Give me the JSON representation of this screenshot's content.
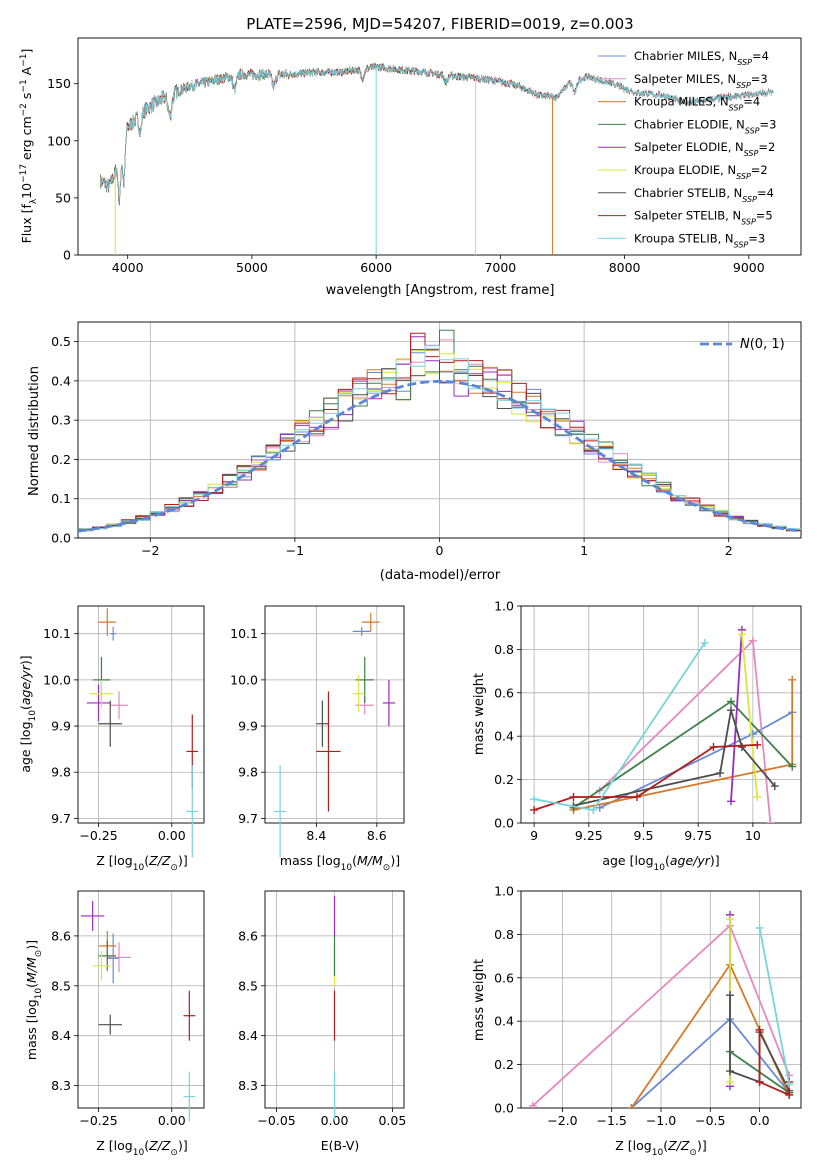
{
  "figure": {
    "title": "PLATE=2596, MJD=54207, FIBERID=0019, z=0.003"
  },
  "colors": {
    "Chabrier MILES": "#6a8ad8",
    "Salpeter MILES": "#e58ac0",
    "Kroupa MILES": "#d77a25",
    "Chabrier ELODIE": "#3f7f4a",
    "Salpeter ELODIE": "#9b2bc1",
    "Kroupa ELODIE": "#d9e63d",
    "Chabrier STELIB": "#4d4d4d",
    "Salpeter STELIB": "#b51d1d",
    "Kroupa STELIB": "#78d4dc",
    "normal_curve": "#5a88d8",
    "grid": "#b0b0b0"
  },
  "chart_data": [
    {
      "type": "line",
      "id": "spectrum",
      "xlabel": "wavelength [Angstrom, rest frame]",
      "ylabel": "Flux [f_λ 10^-17 erg cm^-2 s^-1 A^-1]",
      "xlim": [
        3600,
        9420
      ],
      "ylim": [
        0,
        190
      ],
      "xticks": [
        4000,
        5000,
        6000,
        7000,
        8000,
        9000
      ],
      "yticks": [
        0,
        50,
        100,
        150
      ],
      "grid": false,
      "legend_position": "top-right",
      "continuum_anchor_points": [
        [
          3780,
          65
        ],
        [
          3850,
          60
        ],
        [
          3900,
          72
        ],
        [
          3940,
          95
        ],
        [
          4000,
          112
        ],
        [
          4150,
          128
        ],
        [
          4300,
          138
        ],
        [
          4500,
          148
        ],
        [
          4700,
          153
        ],
        [
          4900,
          158
        ],
        [
          5100,
          158
        ],
        [
          5300,
          158
        ],
        [
          5500,
          160
        ],
        [
          5700,
          160
        ],
        [
          5900,
          163
        ],
        [
          6000,
          165
        ],
        [
          6200,
          162
        ],
        [
          6400,
          160
        ],
        [
          6600,
          157
        ],
        [
          6800,
          155
        ],
        [
          7000,
          152
        ],
        [
          7150,
          148
        ],
        [
          7300,
          140
        ],
        [
          7450,
          138
        ],
        [
          7550,
          150
        ],
        [
          7700,
          156
        ],
        [
          7900,
          150
        ],
        [
          8100,
          142
        ],
        [
          8300,
          140
        ],
        [
          8500,
          133
        ],
        [
          8800,
          138
        ],
        [
          9000,
          140
        ],
        [
          9200,
          143
        ]
      ],
      "series": [
        {
          "name": "Chabrier MILES, N_SSP=4",
          "legend_label": "Chabrier MILES, NSSP=4",
          "xmax": 7420
        },
        {
          "name": "Salpeter MILES, N_SSP=3",
          "legend_label": "Salpeter MILES, NSSP=3",
          "xmax": 7420
        },
        {
          "name": "Kroupa MILES, N_SSP=4",
          "legend_label": "Kroupa MILES, NSSP=4",
          "xmax": 7420
        },
        {
          "name": "Chabrier ELODIE, N_SSP=3",
          "legend_label": "Chabrier ELODIE, NSSP=3",
          "xmax": 6800
        },
        {
          "name": "Salpeter ELODIE, N_SSP=2",
          "legend_label": "Salpeter ELODIE, NSSP=2",
          "xmax": 6800
        },
        {
          "name": "Kroupa ELODIE, N_SSP=2",
          "legend_label": "Kroupa ELODIE, NSSP=2",
          "xmax": 6800
        },
        {
          "name": "Chabrier STELIB, N_SSP=4",
          "legend_label": "Chabrier STELIB, NSSP=4",
          "xmax": 9200
        },
        {
          "name": "Salpeter STELIB, N_SSP=5",
          "legend_label": "Salpeter STELIB, NSSP=5",
          "xmax": 9200
        },
        {
          "name": "Kroupa STELIB, N_SSP=3",
          "legend_label": "Kroupa STELIB, NSSP=3",
          "xmax": 9200
        }
      ]
    },
    {
      "type": "bar",
      "id": "residual_histogram",
      "xlabel": "(data-model)/error",
      "ylabel": "Normed distribution",
      "xlim": [
        -2.5,
        2.5
      ],
      "ylim": [
        0,
        0.55
      ],
      "xticks": [
        -2,
        -1,
        0,
        1,
        2
      ],
      "xtick_labels": [
        "−2",
        "−1",
        "0",
        "1",
        "2"
      ],
      "yticks": [
        0.0,
        0.1,
        0.2,
        0.3,
        0.4,
        0.5
      ],
      "grid": true,
      "legend_position": "top-right",
      "legend_label": "N(0,1)",
      "bin_width": 0.1,
      "bin_start": -2.5,
      "curve": "standard normal, dashed"
    },
    {
      "type": "scatter",
      "id": "age_vs_Z",
      "xlabel": "Z [log10(Z/Z⊙)]",
      "ylabel": "age [log10(age/yr)]",
      "xlim": [
        -0.32,
        0.11
      ],
      "ylim": [
        9.69,
        10.16
      ],
      "xticks": [
        -0.25,
        0.0
      ],
      "xtick_labels": [
        "−0.25",
        "0.00"
      ],
      "yticks": [
        9.7,
        9.8,
        9.9,
        10.0,
        10.1
      ],
      "grid": true,
      "points": [
        {
          "series": "Chabrier MILES",
          "x": -0.2,
          "y": 10.1,
          "xerr": 0.01,
          "yerr": 0.015
        },
        {
          "series": "Salpeter MILES",
          "x": -0.18,
          "y": 9.945,
          "xerr": 0.03,
          "yerr": 0.03
        },
        {
          "series": "Kroupa MILES",
          "x": -0.22,
          "y": 10.125,
          "xerr": 0.03,
          "yerr": 0.03
        },
        {
          "series": "Chabrier ELODIE",
          "x": -0.24,
          "y": 10.0,
          "xerr": 0.03,
          "yerr": 0.05
        },
        {
          "series": "Salpeter ELODIE",
          "x": -0.25,
          "y": 9.95,
          "xerr": 0.04,
          "yerr": 0.04
        },
        {
          "series": "Kroupa ELODIE",
          "x": -0.24,
          "y": 9.97,
          "xerr": 0.04,
          "yerr": 0.03
        },
        {
          "series": "Chabrier STELIB",
          "x": -0.21,
          "y": 9.905,
          "xerr": 0.04,
          "yerr": 0.05
        },
        {
          "series": "Salpeter STELIB",
          "x": 0.07,
          "y": 9.845,
          "xerr": 0.02,
          "yerr": 0.08
        },
        {
          "series": "Kroupa STELIB",
          "x": 0.07,
          "y": 9.715,
          "xerr": 0.02,
          "yerr": 0.1
        }
      ]
    },
    {
      "type": "scatter",
      "id": "age_vs_mass",
      "xlabel": "mass [log10(M/M⊙)]",
      "ylabel": "",
      "xlim": [
        8.23,
        8.69
      ],
      "ylim": [
        9.69,
        10.16
      ],
      "xticks": [
        8.4,
        8.6
      ],
      "yticks": [
        9.7,
        9.8,
        9.9,
        10.0,
        10.1
      ],
      "grid": true,
      "points": [
        {
          "series": "Chabrier MILES",
          "x": 8.55,
          "y": 10.105,
          "xerr": 0.03,
          "yerr": 0.01
        },
        {
          "series": "Salpeter MILES",
          "x": 8.56,
          "y": 9.945,
          "xerr": 0.03,
          "yerr": 0.02
        },
        {
          "series": "Kroupa MILES",
          "x": 8.58,
          "y": 10.125,
          "xerr": 0.03,
          "yerr": 0.02
        },
        {
          "series": "Chabrier ELODIE",
          "x": 8.56,
          "y": 10.0,
          "xerr": 0.03,
          "yerr": 0.05
        },
        {
          "series": "Salpeter ELODIE",
          "x": 8.64,
          "y": 9.95,
          "xerr": 0.02,
          "yerr": 0.05
        },
        {
          "series": "Kroupa ELODIE",
          "x": 8.54,
          "y": 9.97,
          "xerr": 0.02,
          "yerr": 0.04
        },
        {
          "series": "Chabrier STELIB",
          "x": 8.42,
          "y": 9.905,
          "xerr": 0.02,
          "yerr": 0.05
        },
        {
          "series": "Salpeter STELIB",
          "x": 8.44,
          "y": 9.845,
          "xerr": 0.04,
          "yerr": 0.13
        },
        {
          "series": "Kroupa STELIB",
          "x": 8.28,
          "y": 9.715,
          "xerr": 0.02,
          "yerr": 0.1
        }
      ]
    },
    {
      "type": "line",
      "id": "mass_weight_vs_age",
      "xlabel": "age [log10(age/yr)]",
      "ylabel": "mass weight",
      "xlim": [
        8.94,
        10.22
      ],
      "ylim": [
        0.0,
        1.0
      ],
      "xticks": [
        9.0,
        9.25,
        9.5,
        9.75,
        10.0
      ],
      "yticks": [
        0.0,
        0.2,
        0.4,
        0.6,
        0.8,
        1.0
      ],
      "grid": true,
      "series": [
        {
          "name": "Chabrier MILES",
          "x": [
            9.3,
            10.0,
            10.18
          ],
          "y": [
            0.07,
            0.41,
            0.51
          ]
        },
        {
          "name": "Salpeter MILES",
          "x": [
            9.3,
            10.0,
            10.08
          ],
          "y": [
            0.15,
            0.84,
            0.0
          ]
        },
        {
          "name": "Kroupa MILES",
          "x": [
            9.18,
            10.18,
            10.18
          ],
          "y": [
            0.06,
            0.27,
            0.66
          ]
        },
        {
          "name": "Chabrier ELODIE",
          "x": [
            9.18,
            9.9,
            10.18
          ],
          "y": [
            0.07,
            0.56,
            0.26
          ]
        },
        {
          "name": "Salpeter ELODIE",
          "x": [
            9.9,
            9.95
          ],
          "y": [
            0.1,
            0.89
          ]
        },
        {
          "name": "Kroupa ELODIE",
          "x": [
            9.95,
            10.02
          ],
          "y": [
            0.87,
            0.12
          ]
        },
        {
          "name": "Chabrier STELIB",
          "x": [
            9.18,
            9.85,
            9.9,
            9.95,
            10.1
          ],
          "y": [
            0.08,
            0.23,
            0.52,
            0.35,
            0.17
          ]
        },
        {
          "name": "Salpeter STELIB",
          "x": [
            9.0,
            9.18,
            9.47,
            9.82,
            10.02
          ],
          "y": [
            0.06,
            0.12,
            0.12,
            0.35,
            0.36
          ]
        },
        {
          "name": "Kroupa STELIB",
          "x": [
            9.0,
            9.27,
            9.78
          ],
          "y": [
            0.11,
            0.06,
            0.83
          ]
        }
      ]
    },
    {
      "type": "scatter",
      "id": "mass_vs_Z",
      "xlabel": "Z [log10(Z/Z⊙)]",
      "ylabel": "mass [log10(M/M⊙)]",
      "xlim": [
        -0.32,
        0.11
      ],
      "ylim": [
        8.255,
        8.69
      ],
      "xticks": [
        -0.25,
        0.0
      ],
      "xtick_labels": [
        "−0.25",
        "0.00"
      ],
      "yticks": [
        8.3,
        8.4,
        8.5,
        8.6
      ],
      "grid": true,
      "points": [
        {
          "series": "Chabrier MILES",
          "x": -0.2,
          "y": 8.555,
          "xerr": 0.02,
          "yerr": 0.05
        },
        {
          "series": "Salpeter MILES",
          "x": -0.18,
          "y": 8.557,
          "xerr": 0.04,
          "yerr": 0.03
        },
        {
          "series": "Kroupa MILES",
          "x": -0.22,
          "y": 8.58,
          "xerr": 0.03,
          "yerr": 0.03
        },
        {
          "series": "Chabrier ELODIE",
          "x": -0.22,
          "y": 8.56,
          "xerr": 0.03,
          "yerr": 0.03
        },
        {
          "series": "Salpeter ELODIE",
          "x": -0.27,
          "y": 8.64,
          "xerr": 0.04,
          "yerr": 0.03
        },
        {
          "series": "Kroupa ELODIE",
          "x": -0.24,
          "y": 8.54,
          "xerr": 0.03,
          "yerr": 0.03
        },
        {
          "series": "Chabrier STELIB",
          "x": -0.21,
          "y": 8.422,
          "xerr": 0.04,
          "yerr": 0.02
        },
        {
          "series": "Salpeter STELIB",
          "x": 0.06,
          "y": 8.44,
          "xerr": 0.02,
          "yerr": 0.05
        },
        {
          "series": "Kroupa STELIB",
          "x": 0.06,
          "y": 8.278,
          "xerr": 0.02,
          "yerr": 0.05
        }
      ]
    },
    {
      "type": "scatter",
      "id": "mass_vs_EBV",
      "xlabel": "E(B-V)",
      "ylabel": "",
      "xlim": [
        -0.06,
        0.06
      ],
      "ylim": [
        8.255,
        8.69
      ],
      "xticks": [
        -0.05,
        0.0,
        0.05
      ],
      "xtick_labels": [
        "−0.05",
        "0.00",
        "0.05"
      ],
      "yticks": [
        8.3,
        8.4,
        8.5,
        8.6
      ],
      "grid": true,
      "points": [
        {
          "series": "Salpeter ELODIE",
          "x": 0.0,
          "y": 8.64,
          "xerr": 0.0,
          "yerr": 0.04
        },
        {
          "series": "Kroupa ELODIE",
          "x": 0.0,
          "y": 8.54,
          "xerr": 0.0,
          "yerr": 0.04
        },
        {
          "series": "Chabrier ELODIE",
          "x": 0.0,
          "y": 8.56,
          "xerr": 0.0,
          "yerr": 0.04
        },
        {
          "series": "Salpeter STELIB",
          "x": 0.0,
          "y": 8.44,
          "xerr": 0.0,
          "yerr": 0.05
        },
        {
          "series": "Kroupa STELIB",
          "x": 0.0,
          "y": 8.28,
          "xerr": 0.0,
          "yerr": 0.05
        }
      ]
    },
    {
      "type": "line",
      "id": "mass_weight_vs_Z",
      "xlabel": "Z [log10(Z/Z⊙)]",
      "ylabel": "mass weight",
      "xlim": [
        -2.42,
        0.42
      ],
      "ylim": [
        0.0,
        1.0
      ],
      "xticks": [
        -2.0,
        -1.5,
        -1.0,
        -0.5,
        0.0
      ],
      "xtick_labels": [
        "−2.0",
        "−1.5",
        "−1.0",
        "−0.5",
        "0.0"
      ],
      "yticks": [
        0.0,
        0.2,
        0.4,
        0.6,
        0.8,
        1.0
      ],
      "grid": true,
      "series": [
        {
          "name": "Chabrier MILES",
          "x": [
            -1.3,
            -0.3,
            0.3
          ],
          "y": [
            0.0,
            0.41,
            0.07
          ]
        },
        {
          "name": "Salpeter MILES",
          "x": [
            -2.3,
            -0.3,
            0.3
          ],
          "y": [
            0.01,
            0.84,
            0.15
          ]
        },
        {
          "name": "Kroupa MILES",
          "x": [
            -1.3,
            -0.3,
            0.3
          ],
          "y": [
            0.0,
            0.66,
            0.06
          ]
        },
        {
          "name": "Chabrier ELODIE",
          "x": [
            -0.3,
            0.3
          ],
          "y": [
            0.26,
            0.07
          ]
        },
        {
          "name": "Salpeter ELODIE",
          "x": [
            -0.3,
            -0.3
          ],
          "y": [
            0.1,
            0.89
          ]
        },
        {
          "name": "Kroupa ELODIE",
          "x": [
            -0.3,
            -0.3
          ],
          "y": [
            0.12,
            0.87
          ]
        },
        {
          "name": "Chabrier STELIB",
          "x": [
            -0.3,
            -0.3,
            0.0,
            0.0,
            0.3
          ],
          "y": [
            0.52,
            0.17,
            0.12,
            0.35,
            0.08
          ]
        },
        {
          "name": "Salpeter STELIB",
          "x": [
            0.0,
            0.0,
            0.3,
            0.3
          ],
          "y": [
            0.36,
            0.12,
            0.06,
            0.12
          ]
        },
        {
          "name": "Kroupa STELIB",
          "x": [
            0.0,
            0.3
          ],
          "y": [
            0.83,
            0.11
          ]
        }
      ]
    }
  ]
}
